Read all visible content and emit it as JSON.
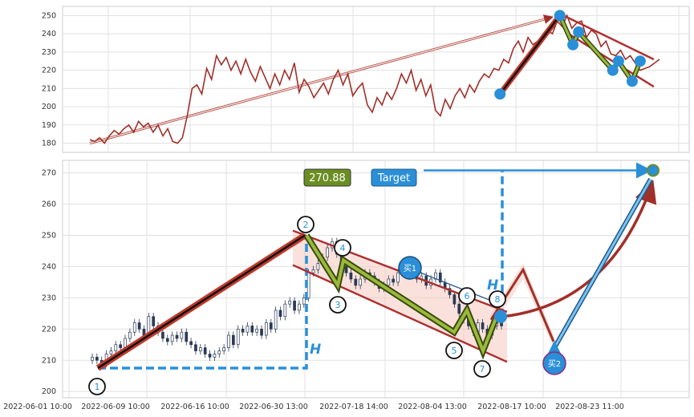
{
  "chart_data": [
    {
      "type": "line",
      "panel": "top",
      "ylim": [
        175,
        255
      ],
      "y_ticks": [
        180,
        190,
        200,
        210,
        220,
        230,
        240,
        250
      ],
      "grid": true,
      "colors": {
        "price": "#a0302a",
        "trend": "#c0392b",
        "marker": "#2a8fd8",
        "zigzag": "#6b8e23"
      },
      "series": [
        {
          "values": [
            182,
            181,
            183,
            180,
            184,
            187,
            185,
            188,
            190,
            186,
            192,
            189,
            191,
            186,
            190,
            184,
            188,
            181,
            180,
            183,
            195,
            210,
            212,
            207,
            221,
            215,
            228,
            223,
            227,
            220,
            225,
            218,
            226,
            219,
            214,
            222,
            216,
            210,
            218,
            212,
            220,
            215,
            224,
            208,
            215,
            211,
            205,
            209,
            213,
            207,
            215,
            220,
            212,
            218,
            206,
            210,
            213,
            201,
            197,
            205,
            201,
            208,
            204,
            210,
            218,
            213,
            220,
            209,
            215,
            206,
            212,
            198,
            195,
            204,
            199,
            206,
            210,
            205,
            212,
            208,
            214,
            218,
            216,
            221,
            220,
            226,
            224,
            232,
            236,
            230,
            238,
            234,
            236,
            237,
            242,
            240,
            247,
            244,
            250,
            243,
            246,
            247,
            238,
            242,
            240,
            233,
            236,
            229,
            228,
            231,
            226,
            228,
            224,
            220,
            221,
            222,
            224,
            226
          ]
        }
      ],
      "pivot_points": [
        [
          0.72,
          207
        ],
        [
          0.825,
          250
        ],
        [
          0.848,
          234
        ],
        [
          0.858,
          241
        ],
        [
          0.918,
          220
        ],
        [
          0.928,
          225
        ],
        [
          0.952,
          214
        ],
        [
          0.966,
          225
        ]
      ],
      "label_values": [
        "270.88"
      ]
    },
    {
      "type": "candlestick",
      "panel": "bottom",
      "ylim": [
        198,
        274
      ],
      "y_ticks": [
        200,
        210,
        220,
        230,
        240,
        250,
        260,
        270
      ],
      "x_ticks": [
        "2022-06-01 10:00",
        "2022-06-09 10:00",
        "2022-06-16 10:00",
        "2022-06-30 13:00",
        "2022-07-18 14:00",
        "2022-08-04 13:00",
        "2022-08-17 10:00",
        "2022-08-23 11:00"
      ],
      "grid": true,
      "closes": [
        211,
        210,
        209,
        212,
        213,
        215,
        214,
        217,
        219,
        222,
        220,
        218,
        224,
        221,
        219,
        217,
        216,
        218,
        217,
        219,
        216,
        215,
        213,
        214,
        212,
        211,
        212,
        213,
        214,
        218,
        215,
        220,
        219,
        221,
        219,
        220,
        218,
        222,
        220,
        226,
        224,
        228,
        229,
        226,
        228,
        230,
        238,
        239,
        241,
        243,
        246,
        248,
        244,
        240,
        238,
        236,
        234,
        236,
        238,
        237,
        235,
        233,
        234,
        236,
        235,
        238,
        240,
        239,
        238,
        236,
        237,
        234,
        236,
        238,
        235,
        233,
        231,
        228,
        225,
        223,
        221,
        219,
        222,
        220,
        218,
        221,
        224,
        221
      ],
      "wave_points": [
        {
          "label": "1",
          "x": 0,
          "y": 207.5
        },
        {
          "label": "2",
          "x": 0.32,
          "y": 250
        },
        {
          "label": "3",
          "x": 0.365,
          "y": 234
        },
        {
          "label": "4",
          "x": 0.375,
          "y": 242
        },
        {
          "label": "5",
          "x": 0.56,
          "y": 219
        },
        {
          "label": "6",
          "x": 0.575,
          "y": 226
        },
        {
          "label": "7",
          "x": 0.6,
          "y": 213
        },
        {
          "label": "8",
          "x": 0.615,
          "y": 225
        }
      ],
      "target_value": "270.88",
      "annotations": {
        "target": "Target",
        "buy1": "买1",
        "buy2": "买2",
        "height": "H"
      }
    }
  ]
}
